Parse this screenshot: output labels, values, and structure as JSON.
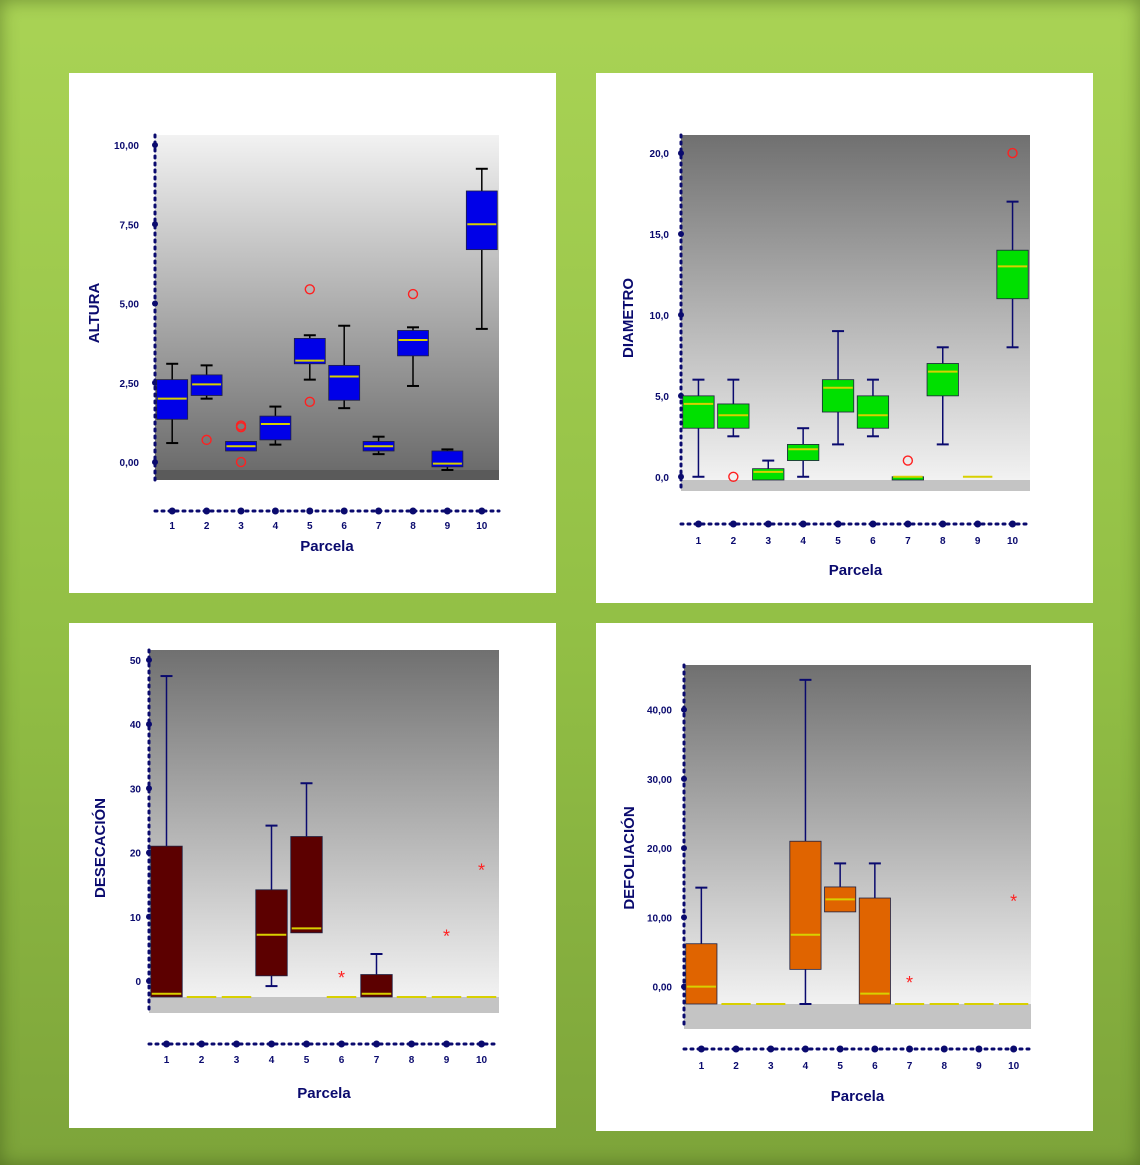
{
  "colors": {
    "frame_green": "#a2cc50",
    "median_line": "#d8d000",
    "axis": "#0a0a6e",
    "outlier": "#ff2020"
  },
  "chart_data": [
    {
      "type": "boxplot",
      "xlabel": "Parcela",
      "ylabel": "ALTURA",
      "categories": [
        "1",
        "2",
        "3",
        "4",
        "5",
        "6",
        "7",
        "8",
        "9",
        "10"
      ],
      "ylim": [
        -0.25,
        10.0
      ],
      "ytick_values": [
        0,
        2.5,
        5.0,
        7.5,
        10.0
      ],
      "ytick_labels": [
        "0,00",
        "2,50",
        "5,00",
        "7,50",
        "10,00"
      ],
      "box_color": "#0000e8",
      "whisker_color": "#000000",
      "boxes": [
        {
          "min": 0.6,
          "q1": 1.35,
          "median": 2.0,
          "q3": 2.6,
          "max": 3.1
        },
        {
          "min": 2.0,
          "q1": 2.1,
          "median": 2.45,
          "q3": 2.75,
          "max": 3.05
        },
        {
          "min": 0.35,
          "q1": 0.35,
          "median": 0.5,
          "q3": 0.65,
          "max": 0.65
        },
        {
          "min": 0.55,
          "q1": 0.7,
          "median": 1.2,
          "q3": 1.45,
          "max": 1.75
        },
        {
          "min": 2.6,
          "q1": 3.1,
          "median": 3.2,
          "q3": 3.9,
          "max": 4.0
        },
        {
          "min": 1.7,
          "q1": 1.95,
          "median": 2.7,
          "q3": 3.05,
          "max": 4.3
        },
        {
          "min": 0.25,
          "q1": 0.35,
          "median": 0.5,
          "q3": 0.65,
          "max": 0.8
        },
        {
          "min": 2.4,
          "q1": 3.35,
          "median": 3.85,
          "q3": 4.15,
          "max": 4.25
        },
        {
          "min": -0.25,
          "q1": -0.15,
          "median": -0.05,
          "q3": 0.35,
          "max": 0.4
        },
        {
          "min": 4.2,
          "q1": 6.7,
          "median": 7.5,
          "q3": 8.55,
          "max": 9.25
        }
      ],
      "outliers": [
        {
          "x": "2",
          "y": 0.7,
          "marker": "circle"
        },
        {
          "x": "3",
          "y": 1.15,
          "marker": "circle"
        },
        {
          "x": "3",
          "y": 1.1,
          "marker": "circle"
        },
        {
          "x": "3",
          "y": 0.0,
          "marker": "circle"
        },
        {
          "x": "5",
          "y": 5.45,
          "marker": "circle"
        },
        {
          "x": "5",
          "y": 1.9,
          "marker": "circle"
        },
        {
          "x": "8",
          "y": 5.3,
          "marker": "circle"
        }
      ]
    },
    {
      "type": "boxplot",
      "xlabel": "Parcela",
      "ylabel": "DIAMETRO",
      "categories": [
        "1",
        "2",
        "3",
        "4",
        "5",
        "6",
        "7",
        "8",
        "9",
        "10"
      ],
      "ylim": [
        -0.2,
        20.5
      ],
      "ytick_values": [
        0,
        5,
        10,
        15,
        20
      ],
      "ytick_labels": [
        "0,0",
        "5,0",
        "10,0",
        "15,0",
        "20,0"
      ],
      "box_color": "#00e000",
      "whisker_color": "#0a0a6e",
      "boxes": [
        {
          "min": 0.0,
          "q1": 3.0,
          "median": 4.5,
          "q3": 5.0,
          "max": 6.0
        },
        {
          "min": 2.5,
          "q1": 3.0,
          "median": 3.8,
          "q3": 4.5,
          "max": 6.0
        },
        {
          "min": -0.2,
          "q1": -0.2,
          "median": 0.3,
          "q3": 0.5,
          "max": 1.0
        },
        {
          "min": 0.0,
          "q1": 1.0,
          "median": 1.7,
          "q3": 2.0,
          "max": 3.0
        },
        {
          "min": 2.0,
          "q1": 4.0,
          "median": 5.5,
          "q3": 6.0,
          "max": 9.0
        },
        {
          "min": 2.5,
          "q1": 3.0,
          "median": 3.8,
          "q3": 5.0,
          "max": 6.0
        },
        {
          "min": -0.2,
          "q1": -0.2,
          "median": 0.0,
          "q3": 0.0,
          "max": 0.0
        },
        {
          "min": 2.0,
          "q1": 5.0,
          "median": 6.5,
          "q3": 7.0,
          "max": 8.0
        },
        {
          "min": 0.0,
          "q1": 0.0,
          "median": 0.0,
          "q3": 0.0,
          "max": 0.0
        },
        {
          "min": 8.0,
          "q1": 11.0,
          "median": 13.0,
          "q3": 14.0,
          "max": 17.0
        }
      ],
      "outliers": [
        {
          "x": "2",
          "y": 0.0,
          "marker": "circle"
        },
        {
          "x": "7",
          "y": 1.0,
          "marker": "circle"
        },
        {
          "x": "10",
          "y": 20.0,
          "marker": "circle"
        }
      ]
    },
    {
      "type": "boxplot",
      "xlabel": "Parcela",
      "ylabel": "DESECACIÓN",
      "categories": [
        "1",
        "2",
        "3",
        "4",
        "5",
        "6",
        "7",
        "8",
        "9",
        "10"
      ],
      "ylim": [
        -2.5,
        50
      ],
      "ytick_values": [
        0,
        10,
        20,
        30,
        40,
        50
      ],
      "ytick_labels": [
        "0",
        "10",
        "20",
        "30",
        "40",
        "50"
      ],
      "box_color": "#5c0000",
      "whisker_color": "#0a0a6e",
      "boxes": [
        {
          "min": -2.5,
          "q1": -2.5,
          "median": -2.0,
          "q3": 21.0,
          "max": 47.5
        },
        {
          "min": -2.5,
          "q1": -2.5,
          "median": -2.5,
          "q3": -2.5,
          "max": -2.5
        },
        {
          "min": -2.5,
          "q1": -2.5,
          "median": -2.5,
          "q3": -2.5,
          "max": -2.5
        },
        {
          "min": -0.8,
          "q1": 0.8,
          "median": 7.2,
          "q3": 14.2,
          "max": 24.2
        },
        {
          "min": 7.5,
          "q1": 7.5,
          "median": 8.2,
          "q3": 22.5,
          "max": 30.8
        },
        {
          "min": -2.5,
          "q1": -2.5,
          "median": -2.5,
          "q3": -2.5,
          "max": -2.5
        },
        {
          "min": -2.5,
          "q1": -2.5,
          "median": -2.0,
          "q3": 1.0,
          "max": 4.2
        },
        {
          "min": -2.5,
          "q1": -2.5,
          "median": -2.5,
          "q3": -2.5,
          "max": -2.5
        },
        {
          "min": -2.5,
          "q1": -2.5,
          "median": -2.5,
          "q3": -2.5,
          "max": -2.5
        },
        {
          "min": -2.5,
          "q1": -2.5,
          "median": -2.5,
          "q3": -2.5,
          "max": -2.5
        }
      ],
      "outliers": [
        {
          "x": "6",
          "y": 0.8,
          "marker": "star"
        },
        {
          "x": "9",
          "y": 7.2,
          "marker": "star"
        },
        {
          "x": "10",
          "y": 17.5,
          "marker": "star"
        }
      ]
    },
    {
      "type": "boxplot",
      "xlabel": "Parcela",
      "ylabel": "DEFOLIACIÓN",
      "categories": [
        "1",
        "2",
        "3",
        "4",
        "5",
        "6",
        "7",
        "8",
        "9",
        "10"
      ],
      "ylim": [
        -2.5,
        45
      ],
      "ytick_values": [
        0,
        10,
        20,
        30,
        40
      ],
      "ytick_labels": [
        "0,00",
        "10,00",
        "20,00",
        "30,00",
        "40,00"
      ],
      "box_color": "#e06400",
      "whisker_color": "#0a0a6e",
      "boxes": [
        {
          "min": -2.5,
          "q1": -2.5,
          "median": 0.0,
          "q3": 6.2,
          "max": 14.3
        },
        {
          "min": -2.5,
          "q1": -2.5,
          "median": -2.5,
          "q3": -2.5,
          "max": -2.5
        },
        {
          "min": -2.5,
          "q1": -2.5,
          "median": -2.5,
          "q3": -2.5,
          "max": -2.5
        },
        {
          "min": -2.5,
          "q1": 2.5,
          "median": 7.5,
          "q3": 21.0,
          "max": 44.3
        },
        {
          "min": 10.8,
          "q1": 10.8,
          "median": 12.6,
          "q3": 14.4,
          "max": 17.8
        },
        {
          "min": -2.5,
          "q1": -2.5,
          "median": -1.0,
          "q3": 12.8,
          "max": 17.8
        },
        {
          "min": -2.5,
          "q1": -2.5,
          "median": -2.5,
          "q3": -2.5,
          "max": -2.5
        },
        {
          "min": -2.5,
          "q1": -2.5,
          "median": -2.5,
          "q3": -2.5,
          "max": -2.5
        },
        {
          "min": -2.5,
          "q1": -2.5,
          "median": -2.5,
          "q3": -2.5,
          "max": -2.5
        },
        {
          "min": -2.5,
          "q1": -2.5,
          "median": -2.5,
          "q3": -2.5,
          "max": -2.5
        }
      ],
      "outliers": [
        {
          "x": "7",
          "y": 0.8,
          "marker": "star"
        },
        {
          "x": "10",
          "y": 12.6,
          "marker": "star"
        }
      ]
    }
  ]
}
